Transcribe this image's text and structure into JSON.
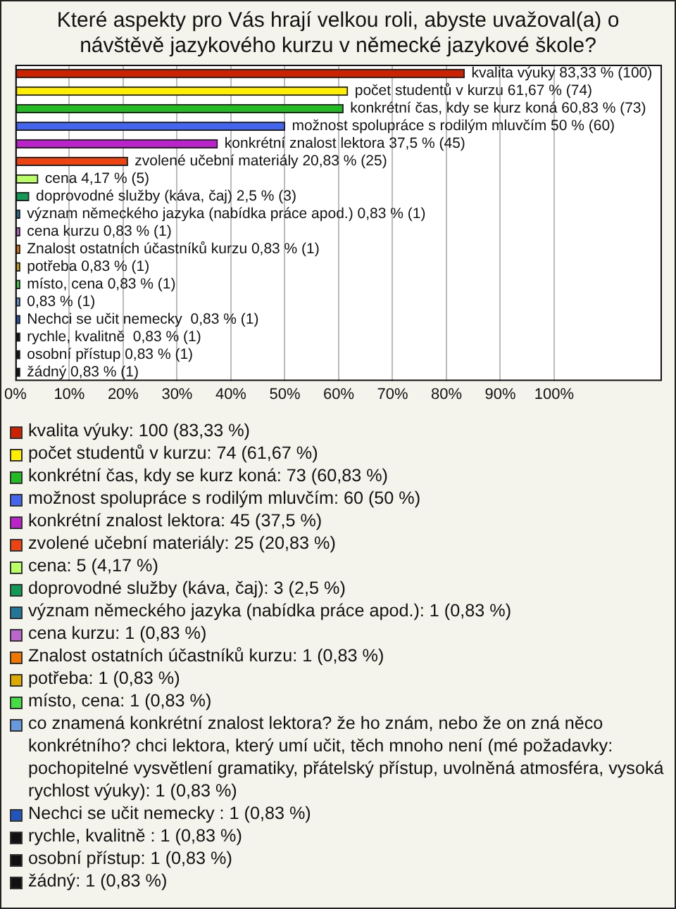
{
  "chart_data": {
    "type": "bar",
    "orientation": "horizontal",
    "title": "Které aspekty pro Vás hrají velkou roli, abyste uvažoval(a) o návštěvě jazykového kurzu v německé jazykové škole?",
    "categories": [
      null,
      null,
      null,
      null,
      null,
      null,
      null,
      null,
      null,
      null,
      null,
      null,
      null,
      null,
      null,
      null,
      null,
      null
    ],
    "series": [
      {
        "name": "kvalita výuky",
        "color": "#cc2200",
        "values": [
          83.33,
          null,
          null,
          null,
          null,
          null,
          null,
          null,
          null,
          null,
          null,
          null,
          null,
          null,
          null,
          null,
          null,
          null
        ],
        "value_labels": [
          "kvalita výuky 83,33 % (100)",
          null,
          null,
          null,
          null,
          null,
          null,
          null,
          null,
          null,
          null,
          null,
          null,
          null,
          null,
          null,
          null,
          null
        ]
      },
      {
        "name": "počet studentů v kurzu",
        "color": "#ffee00",
        "values": [
          null,
          61.67,
          null,
          null,
          null,
          null,
          null,
          null,
          null,
          null,
          null,
          null,
          null,
          null,
          null,
          null,
          null,
          null
        ],
        "value_labels": [
          null,
          "počet studentů v kurzu 61,67 % (74)",
          null,
          null,
          null,
          null,
          null,
          null,
          null,
          null,
          null,
          null,
          null,
          null,
          null,
          null,
          null,
          null
        ]
      },
      {
        "name": "konkrétní čas, kdy se kurz koná",
        "color": "#22bb22",
        "values": [
          null,
          null,
          60.83,
          null,
          null,
          null,
          null,
          null,
          null,
          null,
          null,
          null,
          null,
          null,
          null,
          null,
          null,
          null
        ],
        "value_labels": [
          null,
          null,
          "konkrétní čas, kdy se kurz koná 60,83 % (73)",
          null,
          null,
          null,
          null,
          null,
          null,
          null,
          null,
          null,
          null,
          null,
          null,
          null,
          null,
          null
        ]
      },
      {
        "name": "možnost spolupráce s rodilým mluvčím",
        "color": "#4466ee",
        "values": [
          null,
          null,
          null,
          50,
          null,
          null,
          null,
          null,
          null,
          null,
          null,
          null,
          null,
          null,
          null,
          null,
          null,
          null
        ],
        "value_labels": [
          null,
          null,
          null,
          "možnost spolupráce s rodilým mluvčím 50 % (60)",
          null,
          null,
          null,
          null,
          null,
          null,
          null,
          null,
          null,
          null,
          null,
          null,
          null,
          null
        ]
      },
      {
        "name": "konkrétní znalost lektora",
        "color": "#bb22cc",
        "values": [
          null,
          null,
          null,
          null,
          37.5,
          null,
          null,
          null,
          null,
          null,
          null,
          null,
          null,
          null,
          null,
          null,
          null,
          null
        ],
        "value_labels": [
          null,
          null,
          null,
          null,
          "konkrétní znalost lektora 37,5 % (45)",
          null,
          null,
          null,
          null,
          null,
          null,
          null,
          null,
          null,
          null,
          null,
          null,
          null
        ]
      },
      {
        "name": "zvolené učební materiály",
        "color": "#ee4411",
        "values": [
          null,
          null,
          null,
          null,
          null,
          20.83,
          null,
          null,
          null,
          null,
          null,
          null,
          null,
          null,
          null,
          null,
          null,
          null
        ],
        "value_labels": [
          null,
          null,
          null,
          null,
          null,
          "zvolené učební materiály 20,83 % (25)",
          null,
          null,
          null,
          null,
          null,
          null,
          null,
          null,
          null,
          null,
          null,
          null
        ]
      },
      {
        "name": "cena",
        "color": "#bbff66",
        "values": [
          null,
          null,
          null,
          null,
          null,
          null,
          4.17,
          null,
          null,
          null,
          null,
          null,
          null,
          null,
          null,
          null,
          null,
          null
        ],
        "value_labels": [
          null,
          null,
          null,
          null,
          null,
          null,
          "cena 4,17 % (5)",
          null,
          null,
          null,
          null,
          null,
          null,
          null,
          null,
          null,
          null,
          null
        ]
      },
      {
        "name": "doprovodné služby (káva, čaj)",
        "color": "#119955",
        "values": [
          null,
          null,
          null,
          null,
          null,
          null,
          null,
          2.5,
          null,
          null,
          null,
          null,
          null,
          null,
          null,
          null,
          null,
          null
        ],
        "value_labels": [
          null,
          null,
          null,
          null,
          null,
          null,
          null,
          "doprovodné služby (káva, čaj) 2,5 % (3)",
          null,
          null,
          null,
          null,
          null,
          null,
          null,
          null,
          null,
          null
        ]
      },
      {
        "name": "význam německého jazyka (nabídka práce apod.)",
        "color": "#227799",
        "values": [
          null,
          null,
          null,
          null,
          null,
          null,
          null,
          null,
          0.83,
          null,
          null,
          null,
          null,
          null,
          null,
          null,
          null,
          null
        ],
        "value_labels": [
          null,
          null,
          null,
          null,
          null,
          null,
          null,
          null,
          "význam německého jazyka (nabídka práce apod.) 0,83 % (1)",
          null,
          null,
          null,
          null,
          null,
          null,
          null,
          null,
          null
        ]
      },
      {
        "name": "cena kurzu",
        "color": "#bb66cc",
        "values": [
          null,
          null,
          null,
          null,
          null,
          null,
          null,
          null,
          null,
          0.83,
          null,
          null,
          null,
          null,
          null,
          null,
          null,
          null
        ],
        "value_labels": [
          null,
          null,
          null,
          null,
          null,
          null,
          null,
          null,
          null,
          "cena kurzu 0,83 % (1)",
          null,
          null,
          null,
          null,
          null,
          null,
          null,
          null
        ]
      },
      {
        "name": "Znalost ostatních účastníků kurzu",
        "color": "#ee7700",
        "values": [
          null,
          null,
          null,
          null,
          null,
          null,
          null,
          null,
          null,
          null,
          0.83,
          null,
          null,
          null,
          null,
          null,
          null,
          null
        ],
        "value_labels": [
          null,
          null,
          null,
          null,
          null,
          null,
          null,
          null,
          null,
          null,
          "Znalost ostatních účastníků kurzu 0,83 % (1)",
          null,
          null,
          null,
          null,
          null,
          null,
          null
        ]
      },
      {
        "name": "potřeba",
        "color": "#ddaa00",
        "values": [
          null,
          null,
          null,
          null,
          null,
          null,
          null,
          null,
          null,
          null,
          null,
          0.83,
          null,
          null,
          null,
          null,
          null,
          null
        ],
        "value_labels": [
          null,
          null,
          null,
          null,
          null,
          null,
          null,
          null,
          null,
          null,
          null,
          "potřeba 0,83 % (1)",
          null,
          null,
          null,
          null,
          null,
          null
        ]
      },
      {
        "name": "místo, cena",
        "color": "#44dd44",
        "values": [
          null,
          null,
          null,
          null,
          null,
          null,
          null,
          null,
          null,
          null,
          null,
          null,
          0.83,
          null,
          null,
          null,
          null,
          null
        ],
        "value_labels": [
          null,
          null,
          null,
          null,
          null,
          null,
          null,
          null,
          null,
          null,
          null,
          null,
          "místo, cena 0,83 % (1)",
          null,
          null,
          null,
          null,
          null
        ]
      },
      {
        "name": "co znamená konkrétní znalost lektora? že ho znám, nebo že on zná něco konkrétního? chci lektora, který umí učit, těch mnoho není (mé požadavky: pochopitelné vysvětlení gramatiky, přátelský přístup, uvolněná atmosféra, vysoká rychlost výuky)",
        "color": "#6699dd",
        "values": [
          null,
          null,
          null,
          null,
          null,
          null,
          null,
          null,
          null,
          null,
          null,
          null,
          null,
          0.83,
          null,
          null,
          null,
          null
        ],
        "value_labels": [
          null,
          null,
          null,
          null,
          null,
          null,
          null,
          null,
          null,
          null,
          null,
          null,
          null,
          "0,83 % (1)",
          null,
          null,
          null,
          null
        ]
      },
      {
        "name": "Nechci se učit nemecky ",
        "color": "#2255bb",
        "values": [
          null,
          null,
          null,
          null,
          null,
          null,
          null,
          null,
          null,
          null,
          null,
          null,
          null,
          null,
          0.83,
          null,
          null,
          null
        ],
        "value_labels": [
          null,
          null,
          null,
          null,
          null,
          null,
          null,
          null,
          null,
          null,
          null,
          null,
          null,
          null,
          "Nechci se učit nemecky  0,83 % (1)",
          null,
          null,
          null
        ]
      },
      {
        "name": "rychle, kvalitně ",
        "color": "#111111",
        "values": [
          null,
          null,
          null,
          null,
          null,
          null,
          null,
          null,
          null,
          null,
          null,
          null,
          null,
          null,
          null,
          0.83,
          null,
          null
        ],
        "value_labels": [
          null,
          null,
          null,
          null,
          null,
          null,
          null,
          null,
          null,
          null,
          null,
          null,
          null,
          null,
          null,
          "rychle, kvalitně  0,83 % (1)",
          null,
          null
        ]
      },
      {
        "name": "osobní přístup",
        "color": "#111111",
        "values": [
          null,
          null,
          null,
          null,
          null,
          null,
          null,
          null,
          null,
          null,
          null,
          null,
          null,
          null,
          null,
          null,
          0.83,
          null
        ],
        "value_labels": [
          null,
          null,
          null,
          null,
          null,
          null,
          null,
          null,
          null,
          null,
          null,
          null,
          null,
          null,
          null,
          null,
          "osobní přístup 0,83 % (1)",
          null
        ]
      },
      {
        "name": "žádný",
        "color": "#111111",
        "values": [
          null,
          null,
          null,
          null,
          null,
          null,
          null,
          null,
          null,
          null,
          null,
          null,
          null,
          null,
          null,
          null,
          null,
          0.83
        ],
        "value_labels": [
          null,
          null,
          null,
          null,
          null,
          null,
          null,
          null,
          null,
          null,
          null,
          null,
          null,
          null,
          null,
          null,
          null,
          "žádný 0,83 % (1)"
        ]
      }
    ],
    "annotations": [
      ": 100 (83,33 %)",
      ": 74 (61,67 %)",
      ": 73 (60,83 %)",
      ": 60 (50 %)",
      ": 45 (37,5 %)",
      ": 25 (20,83 %)",
      ": 5 (4,17 %)",
      ": 3 (2,5 %)",
      ": 1 (0,83 %)",
      ": 1 (0,83 %)",
      ": 1 (0,83 %)",
      ": 1 (0,83 %)",
      ": 1 (0,83 %)",
      ": 1 (0,83 %)",
      ": 1 (0,83 %)",
      ": 1 (0,83 %)",
      ": 1 (0,83 %)",
      ": 1 (0,83 %)"
    ],
    "xlim": [
      0,
      120
    ],
    "xticks": [
      {
        "value": 0,
        "label": "0%"
      },
      {
        "value": 10,
        "label": "10%"
      },
      {
        "value": 20,
        "label": "20%"
      },
      {
        "value": 30,
        "label": "30%"
      },
      {
        "value": 40,
        "label": "40%"
      },
      {
        "value": 50,
        "label": "50%"
      },
      {
        "value": 60,
        "label": "60%"
      },
      {
        "value": 70,
        "label": "70%"
      },
      {
        "value": 80,
        "label": "80%"
      },
      {
        "value": 90,
        "label": "90%"
      },
      {
        "value": 100,
        "label": "100%"
      }
    ],
    "grid": "x",
    "tick_labels": "x",
    "legend": "bottom"
  }
}
